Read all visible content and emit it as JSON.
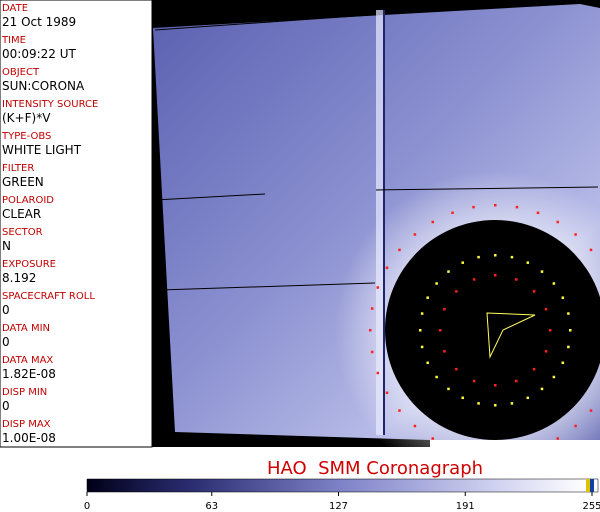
{
  "fields": [
    {
      "label": "DATE",
      "value": "21 Oct 1989"
    },
    {
      "label": "TIME",
      "value": "00:09:22 UT"
    },
    {
      "label": "OBJECT",
      "value": "SUN:CORONA"
    },
    {
      "label": "INTENSITY SOURCE",
      "value": "(K+F)*V"
    },
    {
      "label": "TYPE-OBS",
      "value": "WHITE LIGHT"
    },
    {
      "label": "FILTER",
      "value": "GREEN"
    },
    {
      "label": "POLAROID",
      "value": "CLEAR"
    },
    {
      "label": "SECTOR",
      "value": "N"
    },
    {
      "label": "EXPOSURE",
      "value": "8.192"
    },
    {
      "label": "SPACECRAFT ROLL",
      "value": "0"
    },
    {
      "label": "DATA MIN",
      "value": "0"
    },
    {
      "label": "DATA MAX",
      "value": "1.82E-08"
    },
    {
      "label": "DISP MIN",
      "value": "0"
    },
    {
      "label": "DISP MAX",
      "value": "1.00E-08"
    }
  ],
  "caption": "HAO  SMM Coronagraph",
  "colorbar": {
    "range": [
      0,
      255
    ],
    "ticks": [
      0,
      63,
      127,
      191,
      255
    ]
  }
}
